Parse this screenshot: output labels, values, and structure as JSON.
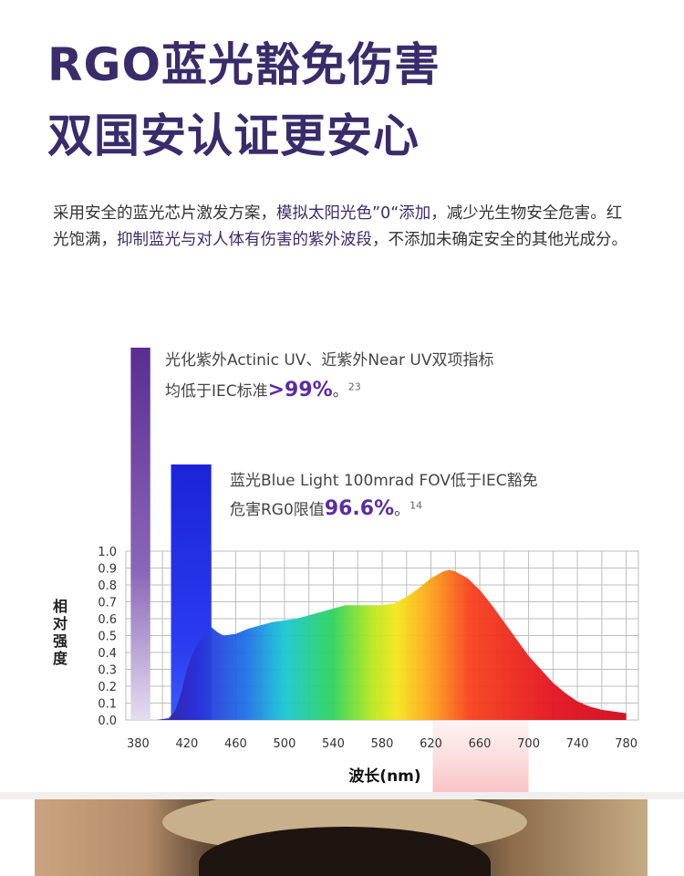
{
  "headline": {
    "line1": "RGO蓝光豁免伤害",
    "line2": "双国安认证更安心"
  },
  "description": {
    "p1": "采用安全的蓝光芯片激发方案，",
    "p1_hl": "模拟太阳光色”0“添加",
    "p2": "，减少光生物安全危害。红光饱满，",
    "p2_hl": "抑制蓝光与对人体有伤害的紫外波段",
    "p3": "，不添加未确定安全的其他光成分。"
  },
  "annotations": {
    "uv_line1": "光化紫外Actinic UV、近紫外Near UV双项指标",
    "uv_line2_pre": "均低于IEC标准",
    "uv_value": ">99%",
    "uv_post": "。",
    "uv_ref": "23",
    "blue_line1": "蓝光Blue Light 100mrad FOV低于IEC豁免",
    "blue_line2_pre": "危害RG0限值",
    "blue_value": "96.6%",
    "blue_post": "。",
    "blue_ref": "14"
  },
  "chart_data": {
    "type": "area",
    "xlabel": "波长(nm)",
    "ylabel": "相对强度",
    "xlim": [
      370,
      790
    ],
    "ylim": [
      0,
      1.0
    ],
    "x_ticks": [
      "380",
      "420",
      "460",
      "500",
      "540",
      "580",
      "620",
      "660",
      "700",
      "740",
      "780"
    ],
    "y_ticks": [
      "0.0",
      "0.1",
      "0.2",
      "0.3",
      "0.4",
      "0.5",
      "0.6",
      "0.7",
      "0.8",
      "0.9",
      "1.0"
    ],
    "grid": true,
    "series": [
      {
        "x": [
          370,
          395,
          405,
          410,
          415,
          420,
          425,
          430,
          435,
          440,
          445,
          450,
          460,
          470,
          480,
          490,
          500,
          510,
          520,
          530,
          540,
          550,
          560,
          570,
          580,
          590,
          600,
          610,
          620,
          630,
          635,
          640,
          650,
          660,
          670,
          680,
          690,
          700,
          710,
          720,
          730,
          740,
          750,
          760,
          770,
          780
        ],
        "values": [
          0.0,
          0.0,
          0.01,
          0.05,
          0.15,
          0.3,
          0.4,
          0.46,
          0.5,
          0.55,
          0.52,
          0.5,
          0.51,
          0.54,
          0.56,
          0.58,
          0.59,
          0.6,
          0.62,
          0.64,
          0.66,
          0.68,
          0.68,
          0.68,
          0.68,
          0.69,
          0.73,
          0.78,
          0.84,
          0.88,
          0.89,
          0.88,
          0.84,
          0.77,
          0.68,
          0.58,
          0.48,
          0.38,
          0.3,
          0.22,
          0.16,
          0.11,
          0.08,
          0.06,
          0.05,
          0.04
        ]
      }
    ],
    "bars": [
      {
        "range": [
          380,
          390
        ],
        "height": 1.0,
        "color": "#5a2d91"
      },
      {
        "range": [
          410,
          440
        ],
        "height": 0.85,
        "color": "#1e2be0"
      }
    ],
    "highlight": {
      "range": [
        620,
        700
      ],
      "color": "#f9c2c4"
    }
  }
}
